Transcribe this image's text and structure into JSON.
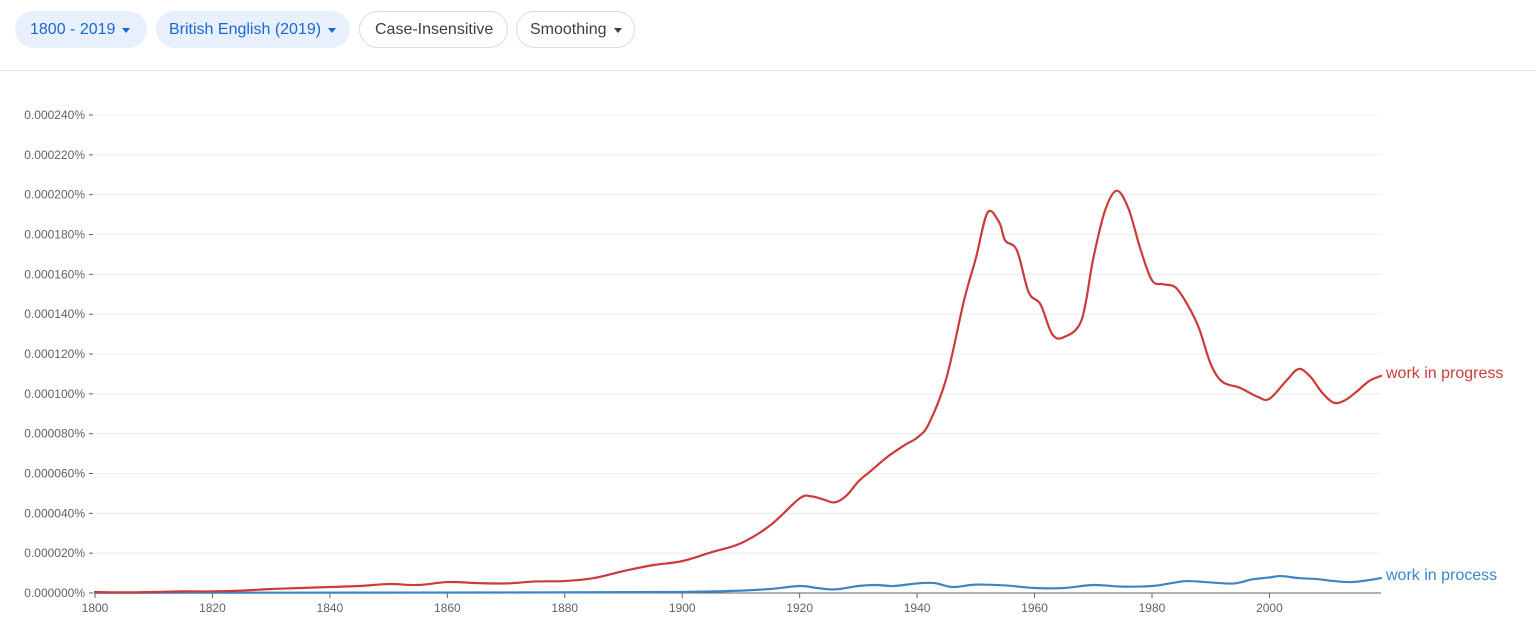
{
  "toolbar": {
    "range_label": "1800 - 2019",
    "corpus_label": "British English (2019)",
    "case_label": "Case-Insensitive",
    "smoothing_label": "Smoothing"
  },
  "colors": {
    "work_in_progress": "#cc3a3a",
    "work_in_process": "#3d85c6",
    "active_chip_bg": "#e8f0fe",
    "active_chip_text": "#1967d2"
  },
  "chart_data": {
    "type": "line",
    "title": "",
    "xlabel": "",
    "ylabel": "",
    "xlim": [
      1800,
      2019
    ],
    "ylim": [
      0,
      0.00024
    ],
    "grid": true,
    "x_ticks": [
      1800,
      1820,
      1840,
      1860,
      1880,
      1900,
      1920,
      1940,
      1960,
      1980,
      2000
    ],
    "y_ticks": [
      {
        "value": 0,
        "label": "0.000000%"
      },
      {
        "value": 2e-05,
        "label": "0.000020%"
      },
      {
        "value": 4e-05,
        "label": "0.000040%"
      },
      {
        "value": 6e-05,
        "label": "0.000060%"
      },
      {
        "value": 8e-05,
        "label": "0.000080%"
      },
      {
        "value": 0.0001,
        "label": "0.000100%"
      },
      {
        "value": 0.00012,
        "label": "0.000120%"
      },
      {
        "value": 0.00014,
        "label": "0.000140%"
      },
      {
        "value": 0.00016,
        "label": "0.000160%"
      },
      {
        "value": 0.00018,
        "label": "0.000180%"
      },
      {
        "value": 0.0002,
        "label": "0.000200%"
      },
      {
        "value": 0.00022,
        "label": "0.000220%"
      },
      {
        "value": 0.00024,
        "label": "0.000240%"
      }
    ],
    "series": [
      {
        "name": "work in progress",
        "color": "#cc3a3a",
        "points": [
          [
            1800,
            5e-07
          ],
          [
            1805,
            3e-07
          ],
          [
            1810,
            5e-07
          ],
          [
            1815,
            8e-07
          ],
          [
            1820,
            8e-07
          ],
          [
            1825,
            1.2e-06
          ],
          [
            1830,
            2e-06
          ],
          [
            1835,
            2.5e-06
          ],
          [
            1840,
            3e-06
          ],
          [
            1845,
            3.5e-06
          ],
          [
            1850,
            4.5e-06
          ],
          [
            1855,
            4e-06
          ],
          [
            1860,
            5.5e-06
          ],
          [
            1865,
            5e-06
          ],
          [
            1870,
            4.8e-06
          ],
          [
            1875,
            5.8e-06
          ],
          [
            1880,
            6e-06
          ],
          [
            1885,
            7.5e-06
          ],
          [
            1890,
            1.1e-05
          ],
          [
            1895,
            1.4e-05
          ],
          [
            1900,
            1.6e-05
          ],
          [
            1905,
            2.05e-05
          ],
          [
            1910,
            2.5e-05
          ],
          [
            1915,
            3.4e-05
          ],
          [
            1920,
            4.75e-05
          ],
          [
            1922,
            4.85e-05
          ],
          [
            1924,
            4.7e-05
          ],
          [
            1926,
            4.55e-05
          ],
          [
            1928,
            4.9e-05
          ],
          [
            1930,
            5.6e-05
          ],
          [
            1932,
            6.1e-05
          ],
          [
            1935,
            6.85e-05
          ],
          [
            1938,
            7.45e-05
          ],
          [
            1940,
            7.8e-05
          ],
          [
            1942,
            8.5e-05
          ],
          [
            1945,
            0.000108
          ],
          [
            1948,
            0.000147
          ],
          [
            1950,
            0.000168
          ],
          [
            1952,
            0.000191
          ],
          [
            1954,
            0.000186
          ],
          [
            1955,
            0.000177
          ],
          [
            1957,
            0.000172
          ],
          [
            1959,
            0.000151
          ],
          [
            1961,
            0.000145
          ],
          [
            1963,
            0.00013
          ],
          [
            1965,
            0.0001285
          ],
          [
            1968,
            0.000137
          ],
          [
            1970,
            0.000168
          ],
          [
            1972,
            0.000192
          ],
          [
            1974,
            0.000202
          ],
          [
            1976,
            0.000193
          ],
          [
            1978,
            0.000173
          ],
          [
            1980,
            0.000157
          ],
          [
            1982,
            0.000155
          ],
          [
            1984,
            0.0001535
          ],
          [
            1986,
            0.000145
          ],
          [
            1988,
            0.000133
          ],
          [
            1990,
            0.000115
          ],
          [
            1992,
            0.000106
          ],
          [
            1995,
            0.000103
          ],
          [
            1998,
            9.85e-05
          ],
          [
            2000,
            9.75e-05
          ],
          [
            2003,
            0.000107
          ],
          [
            2005,
            0.0001125
          ],
          [
            2007,
            0.0001085
          ],
          [
            2009,
            0.0001005
          ],
          [
            2011,
            9.55e-05
          ],
          [
            2013,
            9.7e-05
          ],
          [
            2015,
            0.0001015
          ],
          [
            2017,
            0.0001065
          ],
          [
            2019,
            0.000109
          ]
        ]
      },
      {
        "name": "work in process",
        "color": "#3d85c6",
        "points": [
          [
            1800,
            1e-07
          ],
          [
            1850,
            2e-07
          ],
          [
            1880,
            3e-07
          ],
          [
            1900,
            5e-07
          ],
          [
            1910,
            1.2e-06
          ],
          [
            1915,
            2e-06
          ],
          [
            1920,
            3.5e-06
          ],
          [
            1923,
            2.5e-06
          ],
          [
            1926,
            1.8e-06
          ],
          [
            1930,
            3.5e-06
          ],
          [
            1933,
            4e-06
          ],
          [
            1936,
            3.5e-06
          ],
          [
            1940,
            4.8e-06
          ],
          [
            1943,
            5e-06
          ],
          [
            1946,
            3e-06
          ],
          [
            1950,
            4.2e-06
          ],
          [
            1955,
            3.8e-06
          ],
          [
            1960,
            2.5e-06
          ],
          [
            1965,
            2.5e-06
          ],
          [
            1970,
            4e-06
          ],
          [
            1975,
            3.2e-06
          ],
          [
            1980,
            3.5e-06
          ],
          [
            1983,
            4.8e-06
          ],
          [
            1986,
            6e-06
          ],
          [
            1990,
            5.3e-06
          ],
          [
            1994,
            4.8e-06
          ],
          [
            1997,
            6.8e-06
          ],
          [
            2000,
            7.8e-06
          ],
          [
            2002,
            8.5e-06
          ],
          [
            2005,
            7.5e-06
          ],
          [
            2008,
            7e-06
          ],
          [
            2011,
            6e-06
          ],
          [
            2014,
            5.5e-06
          ],
          [
            2017,
            6.5e-06
          ],
          [
            2019,
            7.5e-06
          ]
        ]
      }
    ]
  }
}
